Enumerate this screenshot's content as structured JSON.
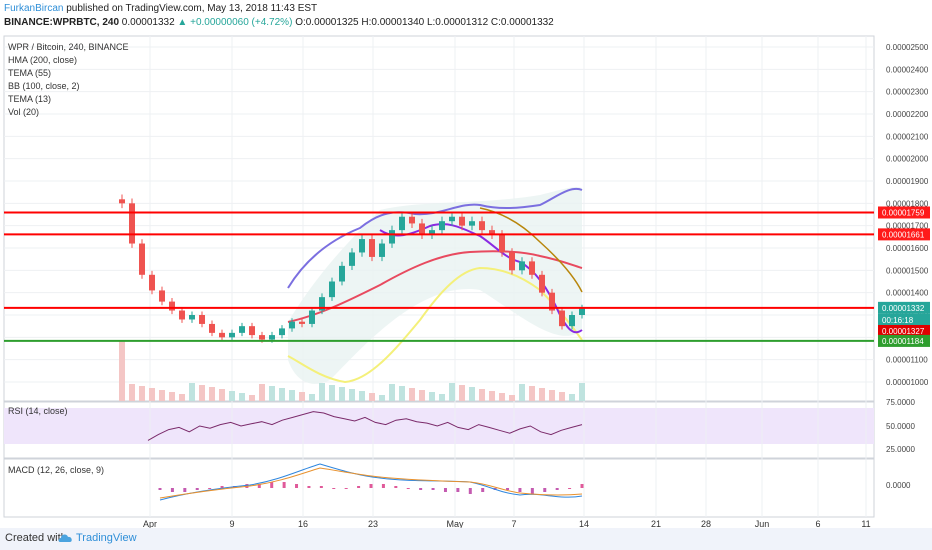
{
  "header": {
    "author": "FurkanBircan",
    "published_text": " published on TradingView.com, May 13, 2018 11:43 EST",
    "symbol_line": "BINANCE:WPRBTC, 240",
    "last": "0.00001332",
    "change": "▲ +0.00000060 (+4.72%)",
    "ohlc": "O:0.00001325 H:0.00001340 L:0.00001312 C:0.00001332"
  },
  "legend": [
    "WPR / Bitcoin, 240, BINANCE",
    "HMA (200, close)",
    "TEMA (55)",
    "BB (100, close, 2)",
    "TEMA (13)",
    "Vol (20)"
  ],
  "chart_data": {
    "type": "candlestick",
    "y_ticks": [
      "0.00002500",
      "0.00002400",
      "0.00002300",
      "0.00002200",
      "0.00002100",
      "0.00002000",
      "0.00001900",
      "0.00001800",
      "0.00001700",
      "0.00001600",
      "0.00001500",
      "0.00001400",
      "0.00001300",
      "0.00001200",
      "0.00001100",
      "0.00001000"
    ],
    "x_ticks": [
      "Apr",
      "9",
      "16",
      "23",
      "May",
      "7",
      "14",
      "21",
      "28",
      "Jun",
      "6",
      "11"
    ],
    "price_labels": [
      {
        "value": "0.00001759",
        "color": "#ff1a1a"
      },
      {
        "value": "0.00001661",
        "color": "#ff1a1a"
      },
      {
        "value": "0.00001332",
        "color": "#26a69a"
      },
      {
        "value": "00:16:18",
        "color": "#26a69a"
      },
      {
        "value": "0.00001327",
        "color": "#e00000"
      },
      {
        "value": "0.00001184",
        "color": "#2e9e2e"
      }
    ],
    "horizontal_lines": [
      {
        "price": 1.759e-05,
        "color": "#ff0000"
      },
      {
        "price": 1.661e-05,
        "color": "#ff0000"
      },
      {
        "price": 1.332e-05,
        "color": "#ff0000"
      },
      {
        "price": 1.184e-05,
        "color": "#2e9e2e"
      }
    ],
    "close_series": [
      1.8e-05,
      1.62e-05,
      1.48e-05,
      1.41e-05,
      1.36e-05,
      1.32e-05,
      1.28e-05,
      1.3e-05,
      1.26e-05,
      1.22e-05,
      1.2e-05,
      1.22e-05,
      1.25e-05,
      1.21e-05,
      1.19e-05,
      1.21e-05,
      1.24e-05,
      1.27e-05,
      1.26e-05,
      1.32e-05,
      1.38e-05,
      1.45e-05,
      1.52e-05,
      1.58e-05,
      1.64e-05,
      1.56e-05,
      1.62e-05,
      1.68e-05,
      1.74e-05,
      1.71e-05,
      1.66e-05,
      1.68e-05,
      1.72e-05,
      1.74e-05,
      1.7e-05,
      1.72e-05,
      1.68e-05,
      1.66e-05,
      1.58e-05,
      1.5e-05,
      1.54e-05,
      1.48e-05,
      1.4e-05,
      1.32e-05,
      1.25e-05,
      1.3e-05,
      1.33e-05
    ],
    "rsi": {
      "label": "RSI (14, close)",
      "ticks": [
        "75.0000",
        "50.0000",
        "25.0000"
      ],
      "values": [
        30,
        38,
        45,
        48,
        42,
        50,
        47,
        52,
        55,
        50,
        53,
        56,
        52,
        58,
        62,
        66,
        70,
        68,
        63,
        60,
        57,
        62,
        55,
        52,
        58,
        60,
        56,
        54,
        50,
        55,
        48,
        45,
        52,
        48,
        44,
        40,
        46,
        50,
        42,
        38,
        44,
        48,
        52
      ]
    },
    "macd": {
      "label": "MACD (12, 26, close, 9)",
      "ticks": [
        "0.0000"
      ],
      "histogram": [
        -1,
        -2,
        -2,
        -1,
        0,
        1,
        1,
        2,
        2,
        3,
        3,
        2,
        1,
        1,
        0,
        0,
        1,
        2,
        2,
        1,
        0,
        -1,
        -1,
        -2,
        -2,
        -3,
        -2,
        -1,
        -1,
        -2,
        -3,
        -2,
        -1,
        0,
        2
      ]
    },
    "ylim": [
      9.5e-06,
      2.55e-05
    ]
  },
  "footer": {
    "created_with": "Created with",
    "brand": "TradingView"
  }
}
